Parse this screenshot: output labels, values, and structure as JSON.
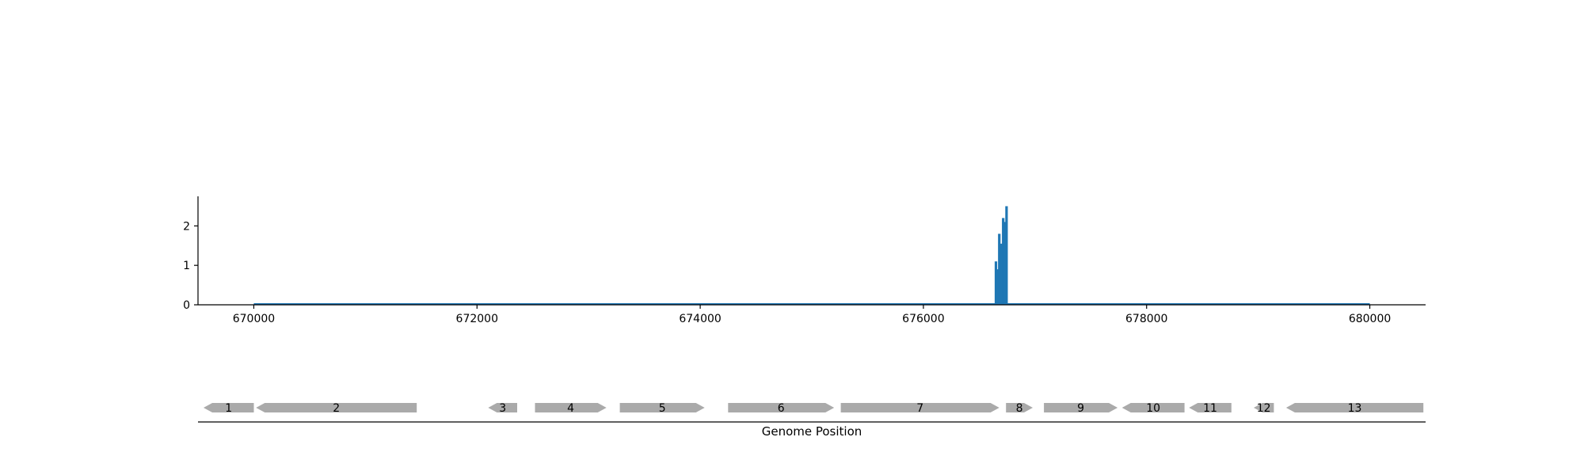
{
  "chart_data": {
    "type": "bar",
    "colors": {
      "bar": "#1f77b4",
      "gene": "#aaaaaa",
      "axis": "#000000"
    },
    "coverage": {
      "xlim": [
        669500,
        680500
      ],
      "ylim": [
        0,
        2.75
      ],
      "x_ticks": [
        670000,
        672000,
        674000,
        676000,
        678000,
        680000
      ],
      "x_tick_labels": [
        "670000",
        "672000",
        "674000",
        "676000",
        "678000",
        "680000"
      ],
      "y_ticks": [
        0,
        1,
        2
      ],
      "y_tick_labels": [
        "0",
        "1",
        "2"
      ],
      "baseline_range": [
        670000,
        680000
      ],
      "bars": [
        {
          "x": 676650,
          "y": 1.1
        },
        {
          "x": 676665,
          "y": 0.9
        },
        {
          "x": 676680,
          "y": 1.8
        },
        {
          "x": 676700,
          "y": 1.55
        },
        {
          "x": 676715,
          "y": 2.2
        },
        {
          "x": 676730,
          "y": 2.1
        },
        {
          "x": 676745,
          "y": 2.5
        }
      ]
    },
    "genes": {
      "xlabel": "Genome Position",
      "items": [
        {
          "label": "1",
          "start": 669550,
          "end": 670000,
          "strand": "-"
        },
        {
          "label": "2",
          "start": 670020,
          "end": 671460,
          "strand": "-"
        },
        {
          "label": "3",
          "start": 672100,
          "end": 672360,
          "strand": "-"
        },
        {
          "label": "4",
          "start": 672520,
          "end": 673160,
          "strand": "+"
        },
        {
          "label": "5",
          "start": 673280,
          "end": 674040,
          "strand": "+"
        },
        {
          "label": "6",
          "start": 674250,
          "end": 675200,
          "strand": "+"
        },
        {
          "label": "7",
          "start": 675260,
          "end": 676680,
          "strand": "+"
        },
        {
          "label": "8",
          "start": 676740,
          "end": 676980,
          "strand": "+"
        },
        {
          "label": "9",
          "start": 677080,
          "end": 677740,
          "strand": "+"
        },
        {
          "label": "10",
          "start": 677780,
          "end": 678340,
          "strand": "-"
        },
        {
          "label": "11",
          "start": 678380,
          "end": 678760,
          "strand": "-"
        },
        {
          "label": "12",
          "start": 678960,
          "end": 679140,
          "strand": "-"
        },
        {
          "label": "13",
          "start": 679250,
          "end": 680480,
          "strand": "-"
        }
      ]
    }
  }
}
